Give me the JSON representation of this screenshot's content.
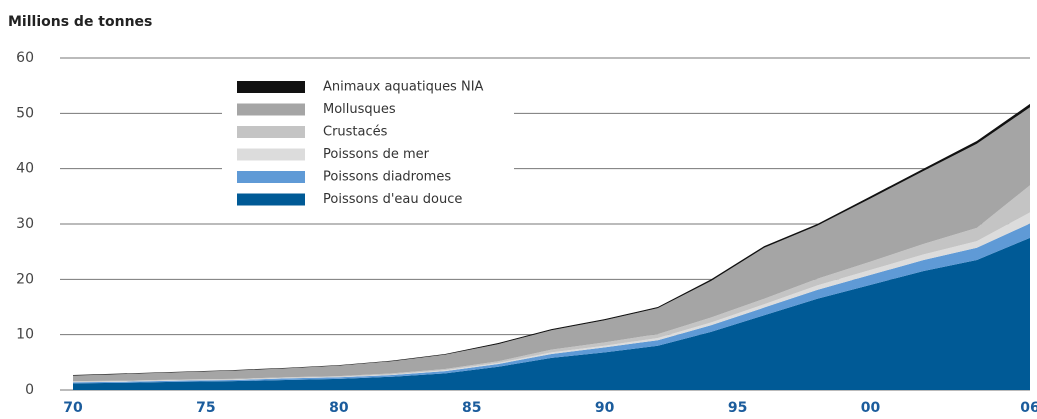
{
  "chart_data": {
    "type": "stacked_area",
    "title": "Millions de tonnes",
    "x": [
      1970,
      1972,
      1974,
      1976,
      1978,
      1980,
      1982,
      1984,
      1986,
      1988,
      1990,
      1992,
      1994,
      1996,
      1998,
      2000,
      2002,
      2004,
      2006
    ],
    "series": [
      {
        "name": "Poissons d'eau douce",
        "color": "#005a96",
        "values": [
          1.2,
          1.3,
          1.5,
          1.6,
          1.8,
          2.0,
          2.4,
          3.0,
          4.2,
          5.8,
          6.8,
          8.0,
          10.5,
          13.5,
          16.5,
          19,
          21.5,
          23.5,
          27.5
        ]
      },
      {
        "name": "Poissons diadromes",
        "color": "#5f9ad6",
        "values": [
          0.2,
          0.2,
          0.2,
          0.2,
          0.3,
          0.3,
          0.3,
          0.4,
          0.5,
          0.7,
          0.9,
          1.0,
          1.2,
          1.4,
          1.6,
          1.8,
          2.0,
          2.2,
          2.6
        ]
      },
      {
        "name": "Poissons de mer",
        "color": "#dcdcdc",
        "values": [
          0.1,
          0.1,
          0.1,
          0.1,
          0.1,
          0.1,
          0.1,
          0.2,
          0.2,
          0.3,
          0.3,
          0.4,
          0.5,
          0.6,
          0.8,
          0.9,
          1.0,
          1.2,
          2.0
        ]
      },
      {
        "name": "Crustacés",
        "color": "#c4c4c4",
        "values": [
          0.1,
          0.1,
          0.1,
          0.1,
          0.1,
          0.1,
          0.2,
          0.2,
          0.3,
          0.5,
          0.6,
          0.7,
          0.9,
          1.0,
          1.2,
          1.5,
          1.9,
          2.4,
          4.9
        ]
      },
      {
        "name": "Mollusques",
        "color": "#a5a5a5",
        "values": [
          1.0,
          1.2,
          1.3,
          1.5,
          1.6,
          1.9,
          2.2,
          2.6,
          3.1,
          3.5,
          4.0,
          4.7,
          6.6,
          9.2,
          9.6,
          11.4,
          13.2,
          15.2,
          14.1
        ]
      },
      {
        "name": "Animaux aquatiques NIA",
        "color": "#111111",
        "values": [
          0.1,
          0.1,
          0.1,
          0.1,
          0.1,
          0.1,
          0.1,
          0.1,
          0.2,
          0.2,
          0.2,
          0.2,
          0.3,
          0.3,
          0.3,
          0.4,
          0.4,
          0.5,
          0.6
        ]
      }
    ],
    "xlim": [
      1970,
      2006
    ],
    "xticks": [
      {
        "value": 1970,
        "label": "70"
      },
      {
        "value": 1975,
        "label": "75"
      },
      {
        "value": 1980,
        "label": "80"
      },
      {
        "value": 1985,
        "label": "85"
      },
      {
        "value": 1990,
        "label": "90"
      },
      {
        "value": 1995,
        "label": "95"
      },
      {
        "value": 2000,
        "label": "00"
      },
      {
        "value": 2006,
        "label": "06"
      }
    ],
    "ylim": [
      0,
      60
    ],
    "yticks": [
      0,
      10,
      20,
      30,
      40,
      50,
      60
    ],
    "grid": true,
    "legend": "top-left"
  }
}
